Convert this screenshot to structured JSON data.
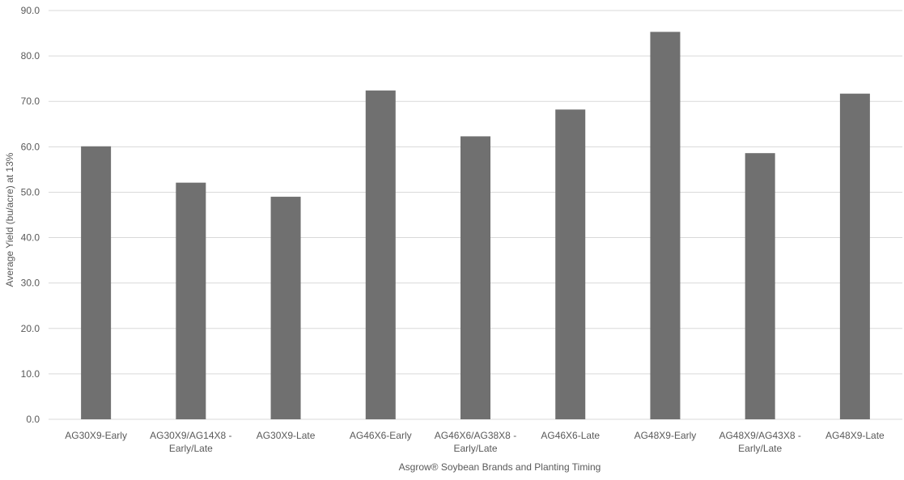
{
  "chart_data": {
    "type": "bar",
    "title": "",
    "xlabel": "Asgrow® Soybean Brands and Planting Timing",
    "ylabel": "Average Yield (bu/acre) at 13%",
    "ylim": [
      0,
      90
    ],
    "yticks": [
      "0.0",
      "10.0",
      "20.0",
      "30.0",
      "40.0",
      "50.0",
      "60.0",
      "70.0",
      "80.0",
      "90.0"
    ],
    "grid": true,
    "legend": "none",
    "bar_color": "#707070",
    "gridline_color": "#d9d9d9",
    "categories": [
      [
        "AG30X9-Early"
      ],
      [
        "AG30X9/AG14X8 -",
        "Early/Late"
      ],
      [
        "AG30X9-Late"
      ],
      [
        "AG46X6-Early"
      ],
      [
        "AG46X6/AG38X8 -",
        "Early/Late"
      ],
      [
        "AG46X6-Late"
      ],
      [
        "AG48X9-Early"
      ],
      [
        "AG48X9/AG43X8 -",
        "Early/Late"
      ],
      [
        "AG48X9-Late"
      ]
    ],
    "values": [
      60.1,
      52.1,
      49.0,
      72.4,
      62.3,
      68.2,
      85.3,
      58.6,
      71.7
    ]
  }
}
